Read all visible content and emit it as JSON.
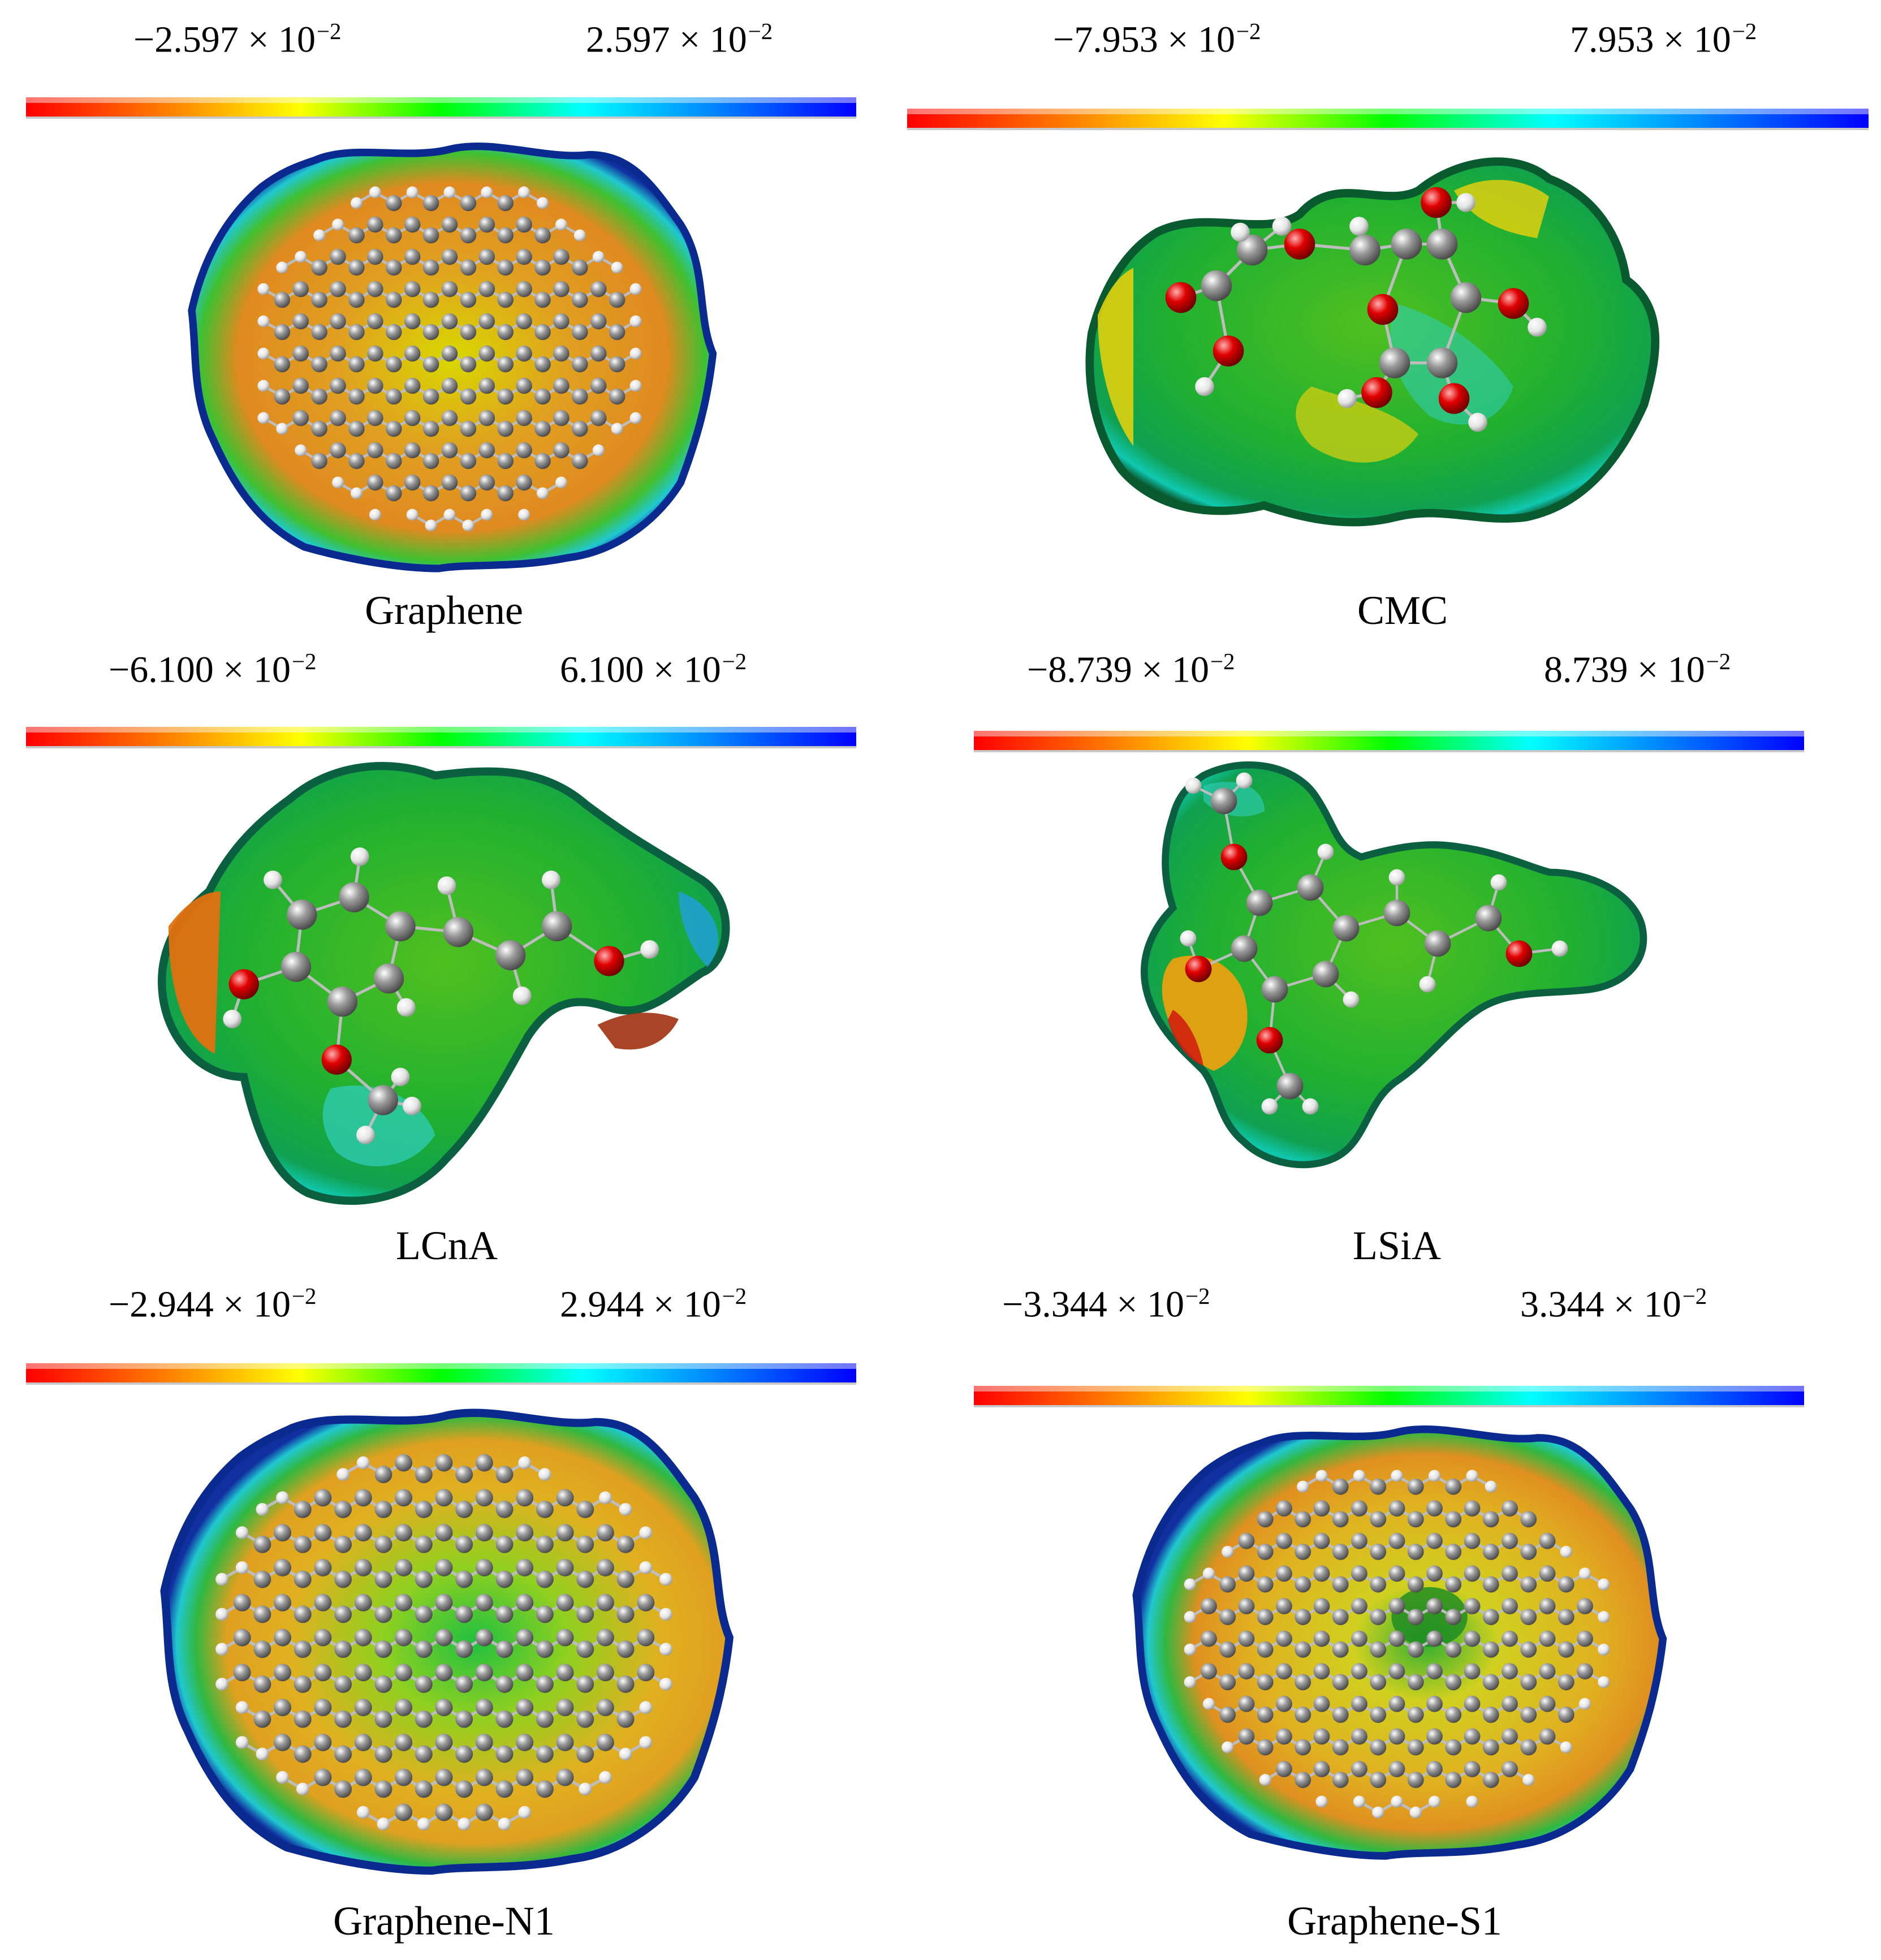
{
  "panels": [
    {
      "name": "Graphene",
      "min": "−2.597",
      "max": "2.597",
      "exp_base": "10",
      "exp": "−2"
    },
    {
      "name": "CMC",
      "min": "−7.953",
      "max": "7.953",
      "exp_base": "10",
      "exp": "−2"
    },
    {
      "name": "LCnA",
      "min": "−6.100",
      "max": "6.100",
      "exp_base": "10",
      "exp": "−2"
    },
    {
      "name": "LSiA",
      "min": "−8.739",
      "max": "8.739",
      "exp_base": "10",
      "exp": "−2"
    },
    {
      "name": "Graphene-N1",
      "min": "−2.944",
      "max": "2.944",
      "exp_base": "10",
      "exp": "−2"
    },
    {
      "name": "Graphene-S1",
      "min": "−3.344",
      "max": "3.344",
      "exp_base": "10",
      "exp": "−2"
    }
  ],
  "times_sign": "×",
  "colorbar": {
    "stops": [
      "#ff0000",
      "#ff7f00",
      "#ffff00",
      "#00ff00",
      "#00ffff",
      "#0000ff"
    ]
  },
  "colors": {
    "carbon": "#8c8c8c",
    "hydrogen": "#f2f2f2",
    "oxygen": "#e00000",
    "nitrogen": "#1020d0",
    "sulfur": "#e8c000"
  }
}
